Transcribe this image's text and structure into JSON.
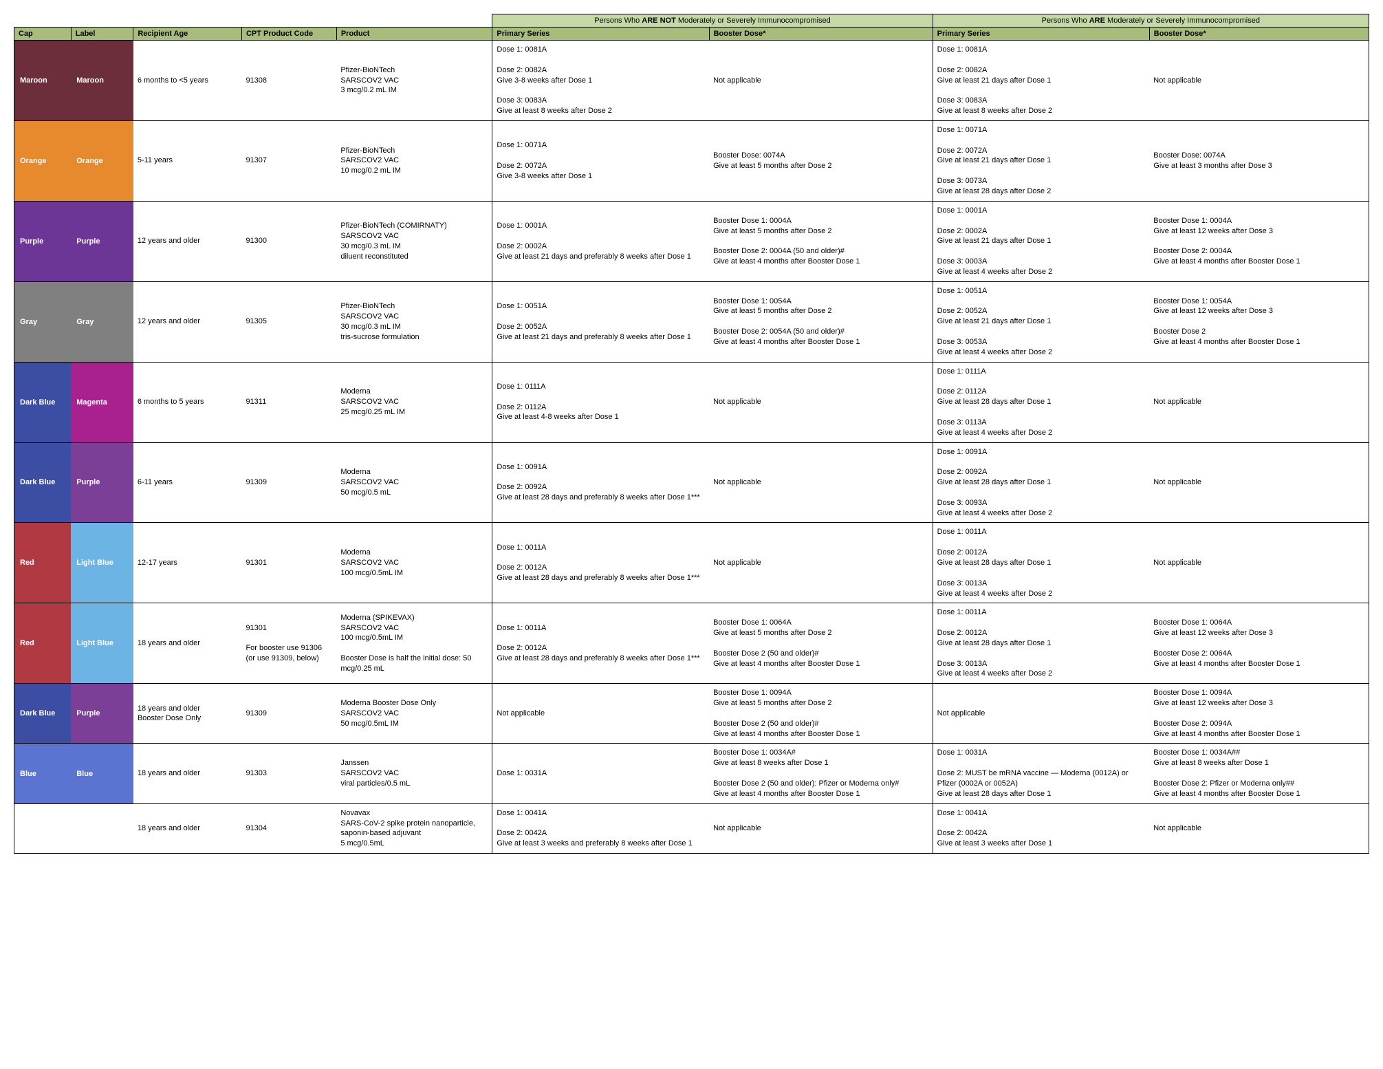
{
  "headers": {
    "group_not": "Persons Who ARE NOT Moderately or Severely Immunocompromised",
    "group_are": "Persons Who ARE Moderately or Severely Immunocompromised",
    "cap": "Cap",
    "label": "Label",
    "age": "Recipient Age",
    "cpt": "CPT Product Code",
    "product": "Product",
    "primary": "Primary Series",
    "booster": "Booster Dose*"
  },
  "colors": {
    "header_group": "#c5d9a6",
    "header_col": "#a8bd7c",
    "maroon": "#6b2e3a",
    "orange": "#e78a2e",
    "purple_dark": "#6b3696",
    "gray": "#808080",
    "dark_blue": "#3b4ea3",
    "magenta": "#a8218e",
    "purple_mid": "#7b3f98",
    "red": "#b13a42",
    "light_blue": "#6cb4e4",
    "blue": "#5b73d1",
    "white": "#ffffff"
  },
  "rows": [
    {
      "cap": "Maroon",
      "cap_color": "#6b2e3a",
      "label": "Maroon",
      "label_color": "#6b2e3a",
      "age": "6 months to <5 years",
      "cpt": "91308",
      "product": "Pfizer-BioNTech\nSARSCOV2 VAC\n3 mcg/0.2 mL IM",
      "ps_not": "Dose 1: 0081A\n\nDose 2: 0082A\nGive 3-8 weeks after Dose 1\n\nDose 3: 0083A\nGive at least 8 weeks after Dose 2",
      "bd_not": "Not applicable",
      "ps_are": "Dose 1: 0081A\n\nDose 2: 0082A\nGive at least 21 days after Dose 1\n\nDose 3: 0083A\nGive at least 8 weeks after Dose 2",
      "bd_are": "Not applicable"
    },
    {
      "cap": "Orange",
      "cap_color": "#e78a2e",
      "label": "Orange",
      "label_color": "#e78a2e",
      "age": "5-11 years",
      "cpt": "91307",
      "product": "Pfizer-BioNTech\nSARSCOV2 VAC\n10 mcg/0.2 mL IM",
      "ps_not": "Dose 1: 0071A\n\nDose 2: 0072A\nGive 3-8 weeks after Dose 1",
      "bd_not": "Booster Dose: 0074A\nGive at least 5 months after Dose 2",
      "ps_are": "Dose 1: 0071A\n\nDose 2: 0072A\nGive at least 21 days after Dose 1\n\nDose 3: 0073A\nGive at least 28 days after Dose 2",
      "bd_are": "Booster Dose: 0074A\nGive at least 3 months after Dose 3"
    },
    {
      "cap": "Purple",
      "cap_color": "#6b3696",
      "label": "Purple",
      "label_color": "#6b3696",
      "age": "12 years and older",
      "cpt": "91300",
      "product": "Pfizer-BioNTech (COMIRNATY)\nSARSCOV2 VAC\n30 mcg/0.3 mL IM\ndiluent reconstituted",
      "ps_not": "Dose 1: 0001A\n\nDose 2: 0002A\nGive at least 21 days and preferably 8 weeks after Dose 1",
      "bd_not": "Booster Dose 1: 0004A\nGive at least 5 months after Dose 2\n\nBooster Dose 2: 0004A (50 and older)#\nGive at least 4 months after Booster Dose 1",
      "ps_are": "Dose 1: 0001A\n\nDose 2: 0002A\nGive at least 21 days after Dose 1\n\nDose 3: 0003A\nGive at least 4 weeks after Dose 2",
      "bd_are": "Booster Dose 1: 0004A\nGive at least 12 weeks after Dose 3\n\nBooster Dose 2: 0004A\nGive at least 4 months after Booster Dose 1"
    },
    {
      "cap": "Gray",
      "cap_color": "#808080",
      "label": "Gray",
      "label_color": "#808080",
      "age": "12 years and older",
      "cpt": "91305",
      "product": "Pfizer-BioNTech\nSARSCOV2 VAC\n30 mcg/0.3 mL IM\ntris-sucrose formulation",
      "ps_not": "Dose 1: 0051A\n\nDose 2: 0052A\nGive at least 21 days and preferably 8 weeks after Dose 1",
      "bd_not": "Booster Dose 1: 0054A\nGive at least 5 months after Dose 2\n\nBooster Dose 2: 0054A (50 and older)#\nGive at least 4 months after Booster Dose 1",
      "ps_are": "Dose 1: 0051A\n\nDose 2: 0052A\nGive at least 21 days after Dose 1\n\nDose 3: 0053A\nGive at least 4 weeks after Dose 2",
      "bd_are": "Booster Dose 1: 0054A\nGive at least 12 weeks after Dose 3\n\nBooster Dose 2\nGive at least 4 months after Booster Dose 1"
    },
    {
      "cap": "Dark Blue",
      "cap_color": "#3b4ea3",
      "label": "Magenta",
      "label_color": "#a8218e",
      "age": "6 months to 5 years",
      "cpt": "91311",
      "product": "Moderna\nSARSCOV2 VAC\n25 mcg/0.25 mL IM",
      "ps_not": "Dose 1: 0111A\n\nDose 2: 0112A\nGive at least 4-8 weeks after Dose 1",
      "bd_not": "Not applicable",
      "ps_are": "Dose 1: 0111A\n\nDose 2: 0112A\nGive at least 28 days after Dose 1\n\nDose 3: 0113A\nGive at least 4 weeks after Dose 2",
      "bd_are": "Not applicable"
    },
    {
      "cap": "Dark Blue",
      "cap_color": "#3b4ea3",
      "label": "Purple",
      "label_color": "#7b3f98",
      "age": "6-11 years",
      "cpt": "91309",
      "product": "Moderna\nSARSCOV2 VAC\n50 mcg/0.5 mL",
      "ps_not": "Dose 1: 0091A\n\nDose 2: 0092A\nGive at least 28 days and preferably 8 weeks after Dose 1***",
      "bd_not": "Not applicable",
      "ps_are": "Dose 1: 0091A\n\nDose 2: 0092A\nGive at least 28 days after Dose 1\n\nDose 3: 0093A\nGive at least 4 weeks after Dose 2",
      "bd_are": "Not applicable"
    },
    {
      "cap": "Red",
      "cap_color": "#b13a42",
      "label": "Light Blue",
      "label_color": "#6cb4e4",
      "age": "12-17 years",
      "cpt": "91301",
      "product": "Moderna\nSARSCOV2 VAC\n100 mcg/0.5mL IM",
      "ps_not": "Dose 1: 0011A\n\nDose 2: 0012A\nGive at least 28 days and preferably 8 weeks after Dose 1***",
      "bd_not": "Not applicable",
      "ps_are": "Dose 1: 0011A\n\nDose 2: 0012A\nGive at least 28 days after Dose 1\n\nDose 3: 0013A\nGive at least 4 weeks after Dose 2",
      "bd_are": "Not applicable"
    },
    {
      "cap": "Red",
      "cap_color": "#b13a42",
      "label": "Light Blue",
      "label_color": "#6cb4e4",
      "age": "18 years and older",
      "cpt": "91301\n\nFor booster use 91306 (or use 91309, below)",
      "product": "Moderna (SPIKEVAX)\nSARSCOV2 VAC\n100 mcg/0.5mL IM\n\nBooster Dose is half the initial dose: 50 mcg/0.25 mL",
      "ps_not": "Dose 1: 0011A\n\nDose 2: 0012A\nGive at least 28 days and preferably 8 weeks after Dose 1***",
      "bd_not": "Booster Dose 1: 0064A\nGive at least 5 months after Dose 2\n\nBooster Dose 2 (50 and older)#\nGive at least 4 months after Booster Dose 1",
      "ps_are": "Dose 1: 0011A\n\nDose 2: 0012A\nGive at least 28 days after Dose 1\n\nDose 3: 0013A\nGive at least 4 weeks after Dose 2",
      "bd_are": "Booster Dose 1: 0064A\nGive at least 12 weeks after Dose 3\n\nBooster Dose 2: 0064A\nGive at least 4 months after Booster Dose 1"
    },
    {
      "cap": "Dark Blue",
      "cap_color": "#3b4ea3",
      "label": "Purple",
      "label_color": "#7b3f98",
      "age": "18 years and older\nBooster Dose Only",
      "cpt": "91309",
      "product": "Moderna Booster Dose Only\nSARSCOV2 VAC\n50 mcg/0.5mL IM",
      "ps_not": "Not applicable",
      "bd_not": "Booster Dose 1: 0094A\nGive at least 5 months after Dose 2\n\nBooster Dose 2 (50 and older)#\nGive at least 4 months after Booster Dose 1",
      "ps_are": "Not applicable",
      "bd_are": "Booster Dose 1: 0094A\nGive at least 12 weeks after Dose 3\n\nBooster Dose 2: 0094A\nGive at least 4 months after Booster Dose 1"
    },
    {
      "cap": "Blue",
      "cap_color": "#5b73d1",
      "label": "Blue",
      "label_color": "#5b73d1",
      "age": "18 years and older",
      "cpt": "91303",
      "product": "Janssen\nSARSCOV2 VAC\nviral particles/0.5 mL",
      "ps_not": "Dose 1: 0031A",
      "bd_not": "Booster Dose 1: 0034A#\nGive at least 8 weeks after Dose 1\n\nBooster Dose 2 (50 and older): Pfizer or Moderna only#\nGive at least 4 months after Booster Dose 1",
      "ps_are": "Dose 1: 0031A\n\nDose 2: MUST be mRNA vaccine — Moderna (0012A) or Pfizer (0002A or 0052A)\nGive at least 28 days after Dose 1",
      "bd_are": "Booster Dose 1: 0034A##\nGive at least 8 weeks after Dose 1\n\nBooster Dose 2: Pfizer or Moderna only##\nGive at least 4 months after Booster Dose 1"
    },
    {
      "cap": "",
      "cap_color": "#ffffff",
      "label": "",
      "label_color": "#ffffff",
      "age": "18 years and older",
      "cpt": "91304",
      "product": "Novavax\nSARS-CoV-2 spike protein nanoparticle, saponin-based adjuvant\n5 mcg/0.5mL",
      "ps_not": "Dose 1:  0041A\n\nDose 2:  0042A\nGive at least 3 weeks and preferably 8 weeks after Dose 1",
      "bd_not": "Not applicable",
      "ps_are": "Dose 1: 0041A\n\nDose 2: 0042A\nGive at least 3 weeks after Dose 1",
      "bd_are": "Not applicable"
    }
  ]
}
